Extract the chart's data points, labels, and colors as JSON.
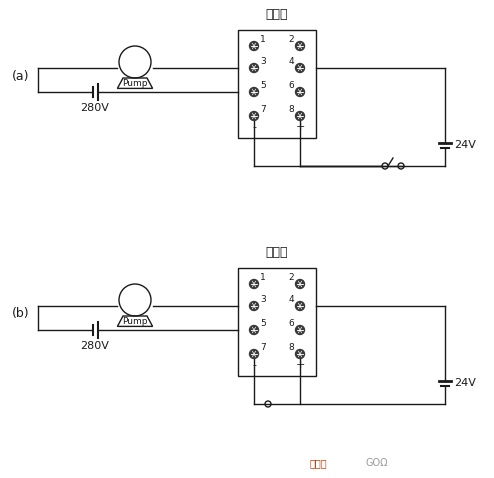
{
  "bg_color": "#ffffff",
  "line_color": "#1a1a1a",
  "title": "继电器",
  "label_a": "(a)",
  "label_b": "(b)",
  "pump_label": "Pump",
  "voltage_ac": "280V",
  "voltage_dc": "24V",
  "pin_minus": "-",
  "pin_plus": "+",
  "watermark_text": "接线图",
  "watermark_color": "#cc3300",
  "watermark2": "GOΩ",
  "watermark2_color": "#999999",
  "figsize": [
    4.94,
    4.78
  ],
  "dpi": 100
}
